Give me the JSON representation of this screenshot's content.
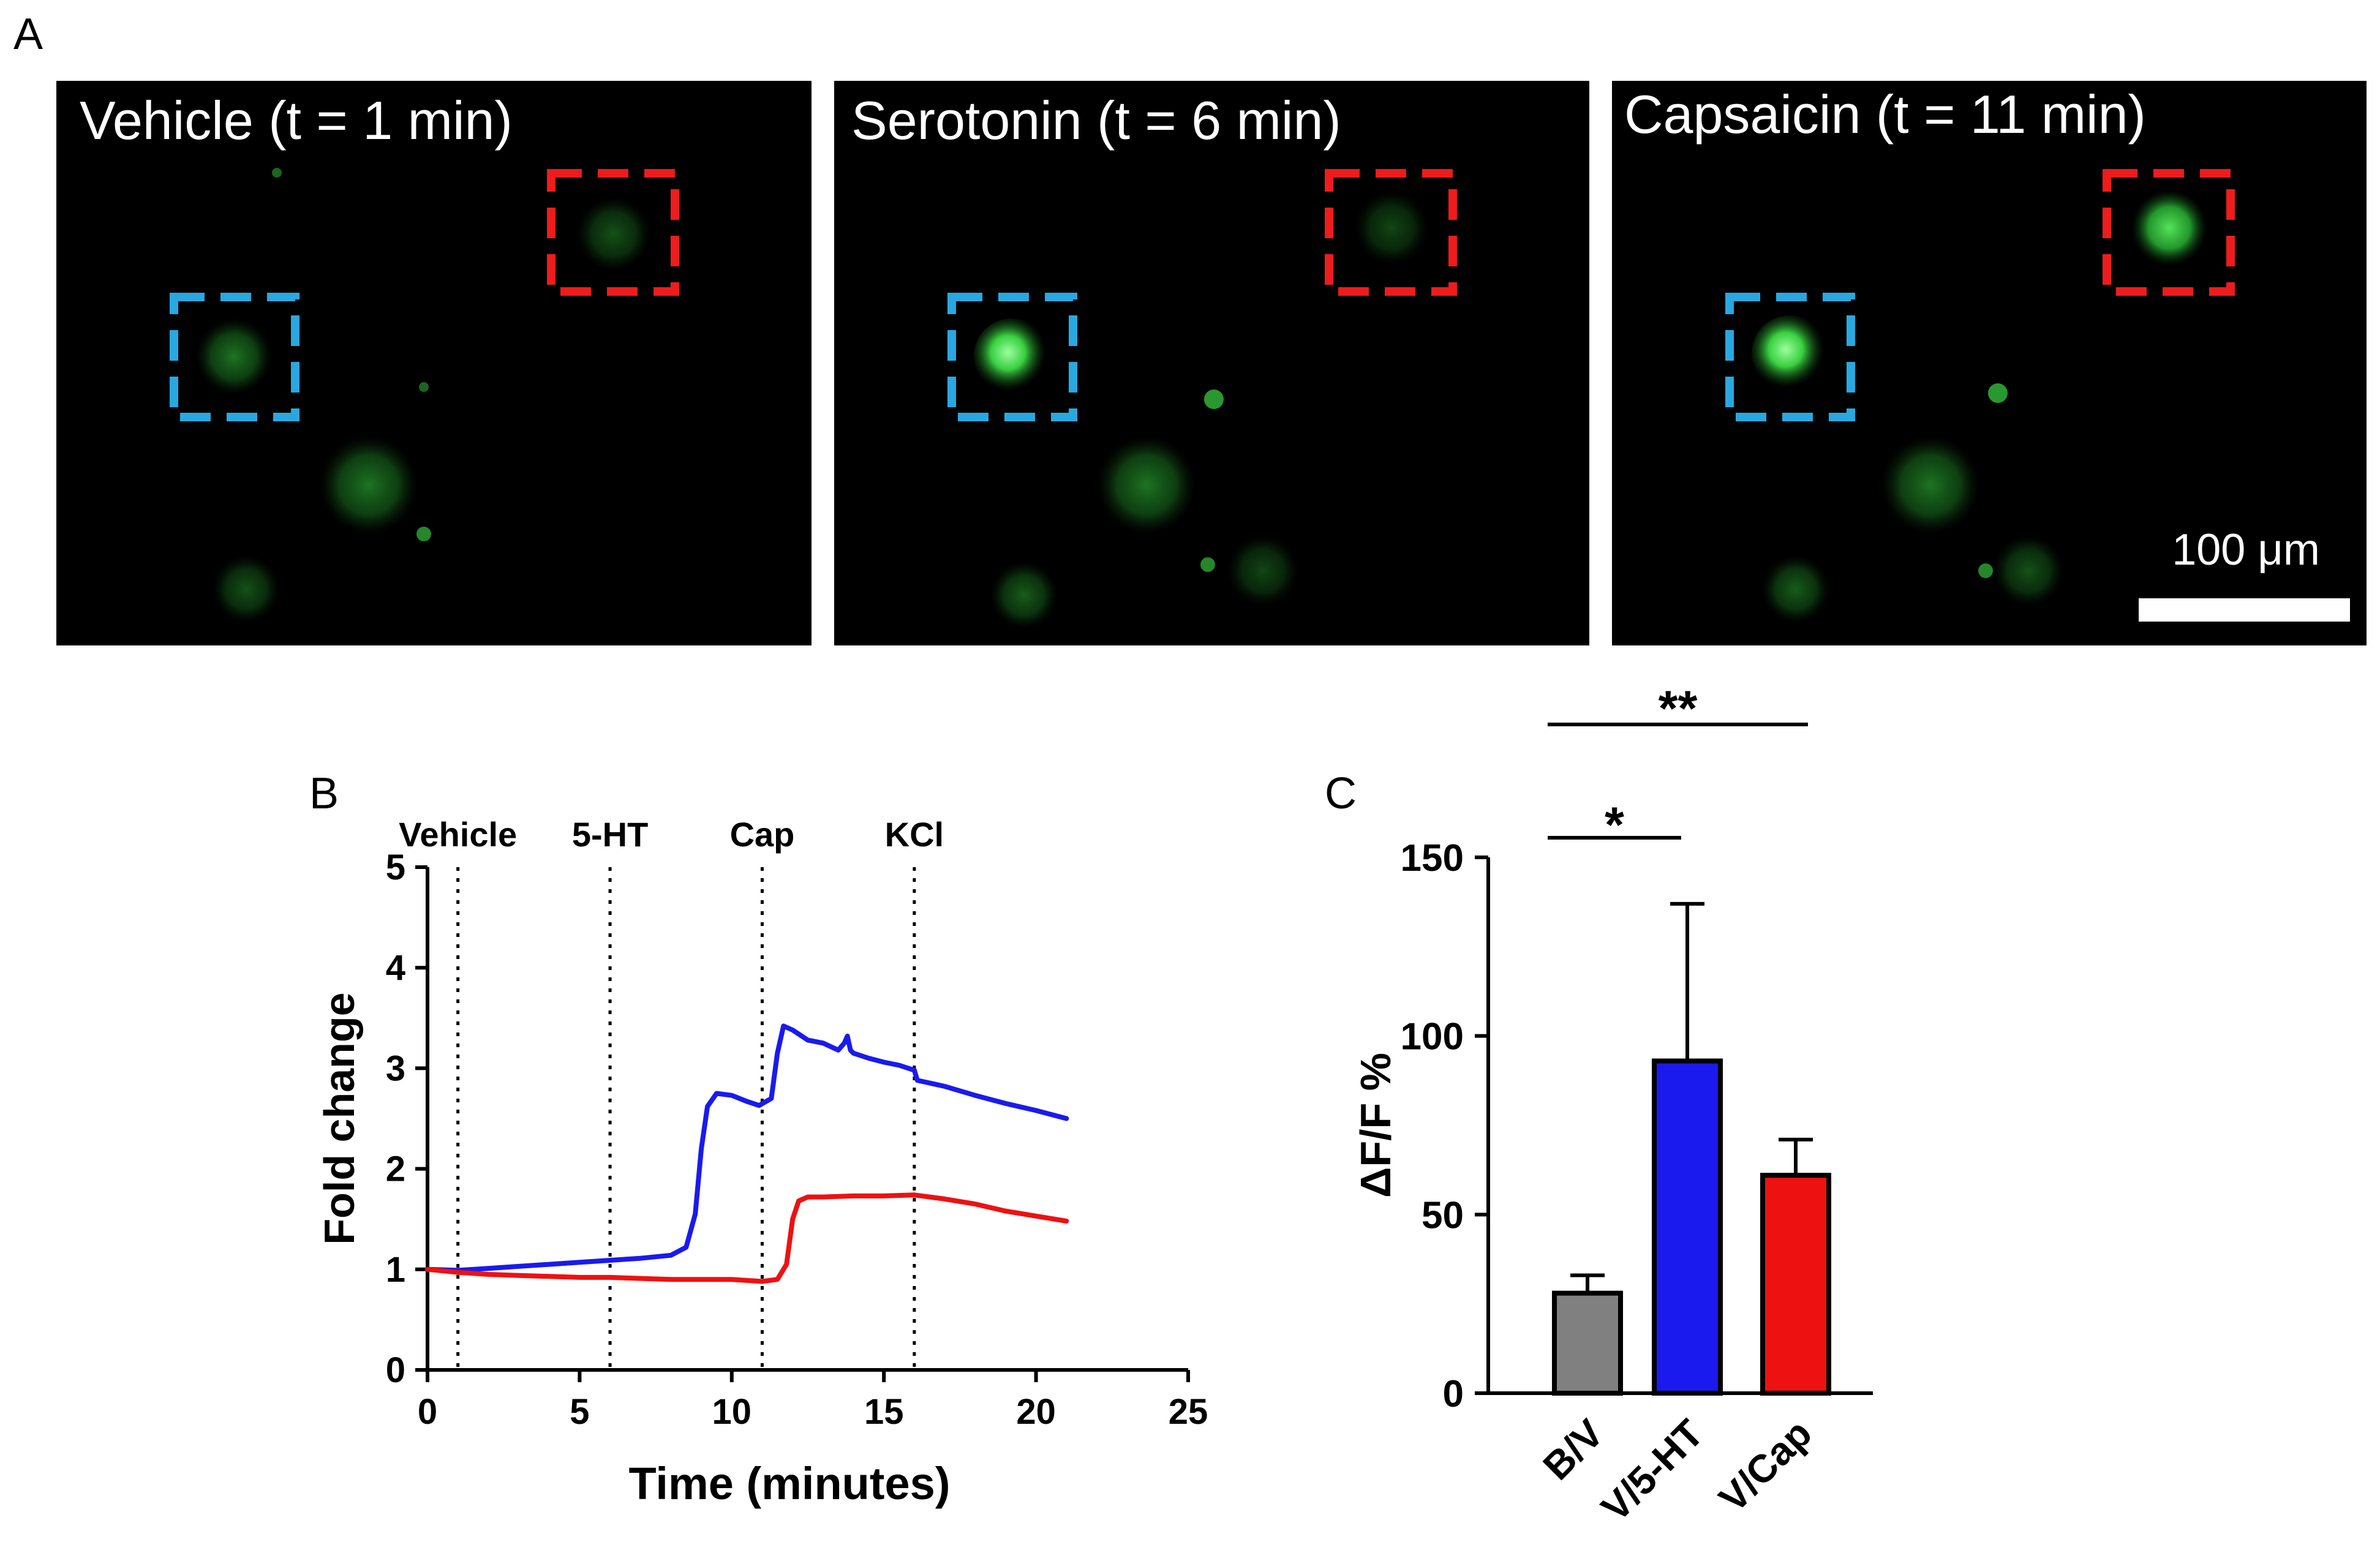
{
  "figure": {
    "panel_labels": {
      "a": "A",
      "b": "B",
      "c": "C"
    }
  },
  "panel_a": {
    "images": [
      {
        "title": "Vehicle (t = 1 min)"
      },
      {
        "title": "Serotonin (t = 6 min)"
      },
      {
        "title": "Capsaicin (t = 11 min)"
      }
    ],
    "scale_bar_label": "100 μm",
    "colors": {
      "background": "#000000",
      "cell": "#2bbf3a",
      "blue_box": "#29a8e0",
      "red_box": "#ee1c1c",
      "text": "#ffffff"
    },
    "icons": [
      "dashed-roi-box-blue",
      "dashed-roi-box-red",
      "scale-bar"
    ]
  },
  "chart_data": [
    {
      "type": "line",
      "panel": "B",
      "title": "",
      "xlabel": "Time (minutes)",
      "ylabel": "Fold change",
      "xlim": [
        0,
        25
      ],
      "ylim": [
        0,
        5
      ],
      "xticks": [
        0,
        5,
        10,
        15,
        20,
        25
      ],
      "yticks": [
        0,
        1,
        2,
        3,
        4,
        5
      ],
      "event_lines": [
        {
          "label": "Vehicle",
          "x": 1
        },
        {
          "label": "5-HT",
          "x": 6
        },
        {
          "label": "Cap",
          "x": 11
        },
        {
          "label": "KCl",
          "x": 16
        }
      ],
      "series": [
        {
          "name": "blue cell",
          "color": "#1a1aee",
          "x": [
            0,
            1,
            2,
            3,
            4,
            5,
            6,
            7,
            8,
            8.5,
            8.8,
            9.0,
            9.2,
            9.5,
            10.0,
            10.5,
            10.9,
            11.3,
            11.5,
            11.7,
            12.0,
            12.5,
            13.0,
            13.5,
            13.7,
            13.8,
            13.9,
            14.0,
            14.5,
            15.0,
            15.5,
            16.0,
            16.1,
            17,
            18,
            19,
            20,
            21
          ],
          "y": [
            1.0,
            0.99,
            1.01,
            1.03,
            1.05,
            1.07,
            1.09,
            1.11,
            1.14,
            1.22,
            1.55,
            2.2,
            2.62,
            2.75,
            2.73,
            2.67,
            2.63,
            2.7,
            3.15,
            3.42,
            3.38,
            3.28,
            3.25,
            3.18,
            3.25,
            3.32,
            3.18,
            3.15,
            3.1,
            3.06,
            3.03,
            2.98,
            2.88,
            2.82,
            2.73,
            2.65,
            2.58,
            2.5
          ]
        },
        {
          "name": "red cell",
          "color": "#ee1111",
          "x": [
            0,
            1,
            2,
            3,
            4,
            5,
            6,
            7,
            8,
            9,
            10,
            10.5,
            11.0,
            11.5,
            11.8,
            12.0,
            12.2,
            12.5,
            13,
            14,
            15,
            16,
            17,
            18,
            19,
            20,
            21
          ],
          "y": [
            1.0,
            0.97,
            0.95,
            0.94,
            0.93,
            0.92,
            0.92,
            0.91,
            0.9,
            0.9,
            0.9,
            0.89,
            0.88,
            0.9,
            1.05,
            1.5,
            1.68,
            1.72,
            1.72,
            1.73,
            1.73,
            1.74,
            1.7,
            1.65,
            1.58,
            1.53,
            1.48
          ]
        }
      ]
    },
    {
      "type": "bar",
      "panel": "C",
      "title": "",
      "xlabel": "",
      "ylabel": "ΔF/F %",
      "ylim": [
        0,
        150
      ],
      "yticks": [
        0,
        50,
        100,
        150
      ],
      "categories": [
        "B/V",
        "V/5-HT",
        "V/Cap"
      ],
      "values": [
        28,
        93,
        61
      ],
      "errors": [
        5,
        44,
        10
      ],
      "colors": [
        "#808080",
        "#1a1aee",
        "#ee1111"
      ],
      "significance": [
        {
          "label": "*",
          "from": "B/V",
          "to": "V/5-HT"
        },
        {
          "label": "**",
          "from": "B/V",
          "to": "V/Cap"
        }
      ]
    }
  ]
}
